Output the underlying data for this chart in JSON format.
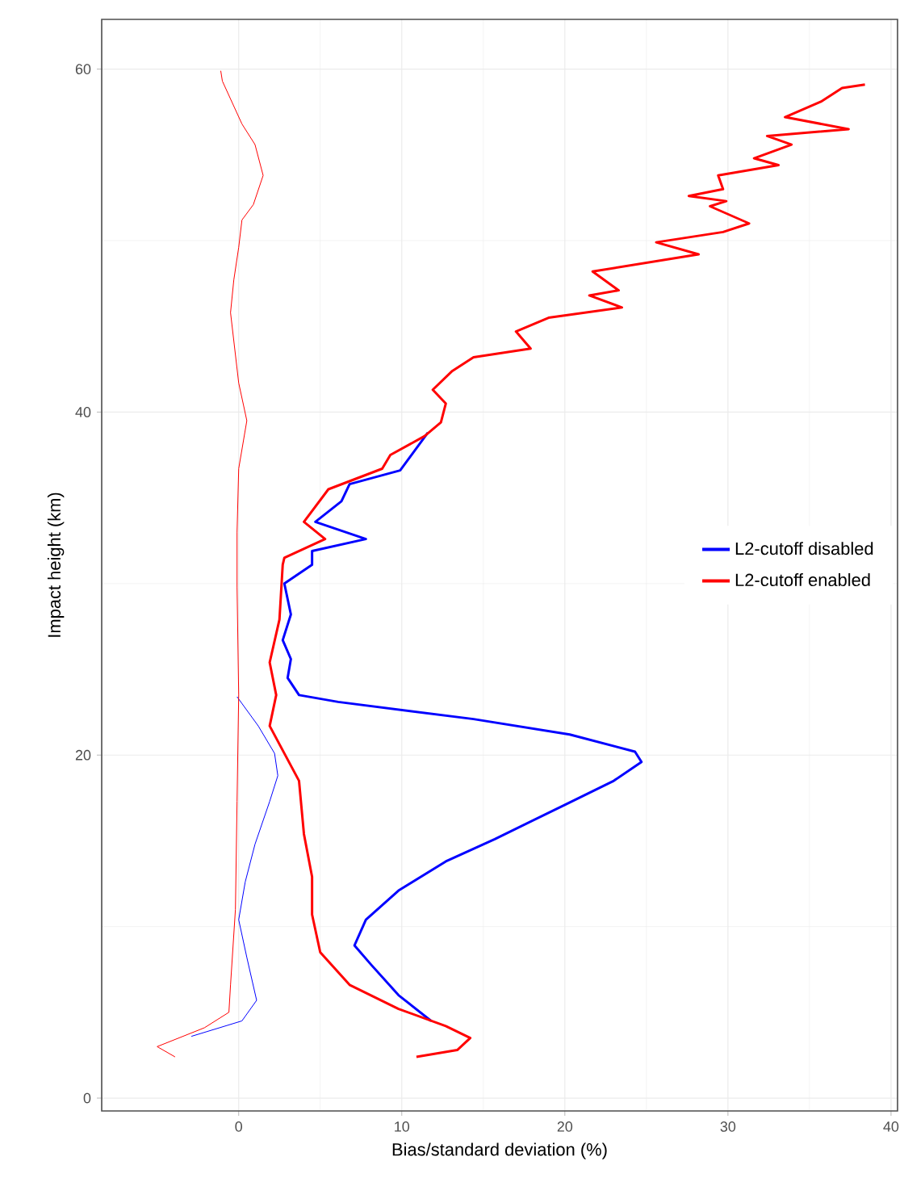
{
  "chart_data": {
    "type": "line",
    "xlabel": "Bias/standard deviation (%)",
    "ylabel": "Impact height (km)",
    "xlim": [
      -8.4,
      40.4
    ],
    "ylim": [
      -0.75,
      62.9
    ],
    "xticks": [
      0,
      10,
      20,
      30,
      40
    ],
    "yticks": [
      0,
      20,
      40,
      60
    ],
    "grid": true,
    "legend": "right",
    "series": [
      {
        "name": "L2-cutoff disabled",
        "color": "#0000ff",
        "x": [
          11.6,
          9.9,
          6.8,
          6.3,
          4.7,
          7.8,
          4.5,
          4.5,
          2.8,
          3.2,
          2.7,
          3.2,
          3.0,
          3.7,
          6.1,
          14.4,
          20.3,
          24.3,
          24.7,
          23.0,
          20.0,
          15.7,
          12.7,
          9.8,
          7.8,
          7.1,
          8.1,
          9.8,
          11.8
        ],
        "values": [
          38.8,
          36.6,
          35.8,
          34.8,
          33.6,
          32.6,
          31.9,
          31.1,
          30.0,
          28.2,
          26.7,
          25.6,
          24.5,
          23.5,
          23.1,
          22.1,
          21.2,
          20.2,
          19.6,
          18.5,
          17.1,
          15.1,
          13.8,
          12.1,
          10.4,
          8.9,
          7.8,
          6.0,
          4.5
        ]
      },
      {
        "name": "L2-cutoff enabled",
        "color": "#ff0000",
        "x": [
          38.4,
          37.0,
          35.7,
          33.5,
          37.4,
          32.4,
          33.9,
          31.6,
          33.1,
          29.4,
          29.7,
          27.6,
          29.9,
          28.9,
          31.3,
          29.7,
          25.6,
          28.2,
          21.7,
          23.3,
          21.5,
          23.5,
          19.0,
          17.0,
          17.9,
          14.4,
          13.1,
          11.9,
          12.7,
          12.4,
          11.4,
          9.3,
          8.8,
          5.5,
          4.0,
          5.3,
          2.8,
          2.7,
          2.5,
          1.9,
          2.3,
          1.9,
          2.8,
          3.7,
          4.0,
          4.5,
          4.5,
          5.0,
          6.8,
          9.8,
          12.7,
          14.2,
          13.4,
          10.9
        ],
        "values": [
          59.1,
          58.9,
          58.1,
          57.2,
          56.5,
          56.1,
          55.6,
          54.8,
          54.4,
          53.8,
          53.0,
          52.6,
          52.3,
          52.0,
          51.0,
          50.5,
          49.9,
          49.2,
          48.2,
          47.1,
          46.8,
          46.1,
          45.5,
          44.7,
          43.7,
          43.2,
          42.4,
          41.3,
          40.5,
          39.4,
          38.6,
          37.5,
          36.7,
          35.5,
          33.6,
          32.6,
          31.5,
          31.1,
          27.9,
          25.4,
          23.5,
          21.7,
          20.1,
          18.5,
          15.4,
          12.9,
          10.7,
          8.5,
          6.6,
          5.2,
          4.2,
          3.5,
          2.8,
          2.4
        ]
      },
      {
        "color": "#0000ff",
        "x": [
          -0.1,
          1.2,
          2.2,
          2.4,
          1.9,
          1.0,
          0.4,
          0.0,
          0.5,
          1.1,
          0.2,
          -2.9
        ],
        "values": [
          23.4,
          21.7,
          20.1,
          18.8,
          17.3,
          14.8,
          12.6,
          10.4,
          8.2,
          5.7,
          4.5,
          3.6
        ]
      },
      {
        "color": "#ff0000",
        "x": [
          -1.1,
          -1.0,
          0.2,
          1.0,
          1.5,
          0.9,
          0.2,
          0.0,
          -0.3,
          -0.5,
          0.0,
          0.5,
          0.0,
          -0.1,
          -0.1,
          0.0,
          -0.1,
          -0.2,
          -0.5,
          -0.6,
          -2.1,
          -5.0,
          -3.9
        ],
        "values": [
          59.9,
          59.3,
          56.8,
          55.6,
          53.8,
          52.1,
          51.2,
          49.6,
          47.7,
          45.8,
          41.7,
          39.5,
          36.7,
          33.0,
          29.8,
          23.5,
          17.3,
          11.0,
          6.6,
          5.0,
          4.1,
          3.0,
          2.4
        ]
      }
    ]
  }
}
